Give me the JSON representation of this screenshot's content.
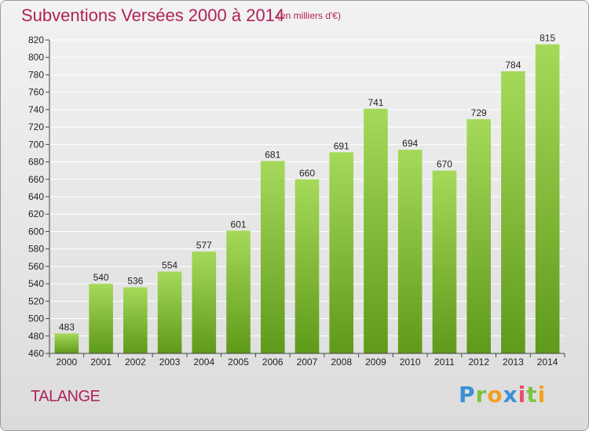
{
  "header": {
    "title": "Subventions Versées 2000 à 2014",
    "subtitle": "(en milliers d'€)"
  },
  "footer": {
    "place": "TALANGE",
    "logo": "Proxiti"
  },
  "colors": {
    "title": "#b0215a",
    "bar_top": "#a6d95a",
    "bar_bottom": "#5f9a1a",
    "grid": "#ffffff"
  },
  "chart_data": {
    "type": "bar",
    "title": "Subventions Versées 2000 à 2014",
    "subtitle": "(en milliers d'€)",
    "xlabel": "",
    "ylabel": "",
    "categories": [
      "2000",
      "2001",
      "2002",
      "2003",
      "2004",
      "2005",
      "2006",
      "2007",
      "2008",
      "2009",
      "2010",
      "2011",
      "2012",
      "2013",
      "2014"
    ],
    "values": [
      483,
      540,
      536,
      554,
      577,
      601,
      681,
      660,
      691,
      741,
      694,
      670,
      729,
      784,
      815
    ],
    "ylim": [
      460,
      820
    ],
    "yticks": [
      460,
      480,
      500,
      520,
      540,
      560,
      580,
      600,
      620,
      640,
      660,
      680,
      700,
      720,
      740,
      760,
      780,
      800,
      820
    ],
    "grid": true,
    "legend": "none"
  }
}
